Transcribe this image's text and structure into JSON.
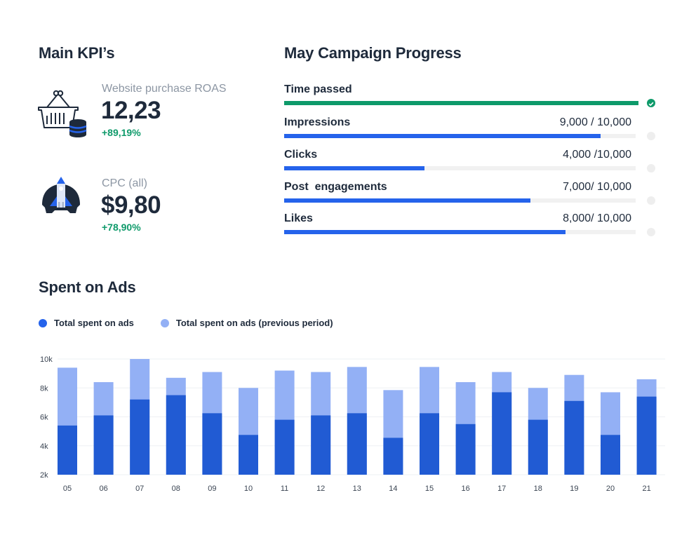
{
  "kpis": {
    "title": "Main KPI’s",
    "items": [
      {
        "label": "Website purchase ROAS",
        "value": "12,23",
        "delta": "+89,19%",
        "icon": "shopping-basket-database-icon"
      },
      {
        "label": "CPC (all)",
        "value": "$9,80",
        "delta": "+78,90%",
        "icon": "rocket-launch-icon"
      }
    ]
  },
  "progress": {
    "title": "May Campaign Progress",
    "items": [
      {
        "label": "Time passed",
        "value_text": "",
        "fraction": 1.0,
        "color": "#0e9a6a",
        "complete": true
      },
      {
        "label": "Impressions",
        "value_text": "9,000 / 10,000",
        "fraction": 0.9,
        "color": "#2563eb",
        "complete": false
      },
      {
        "label": "Clicks",
        "value_text": "4,000 /10,000",
        "fraction": 0.4,
        "color": "#2563eb",
        "complete": false
      },
      {
        "label": "Post  engagements",
        "value_text": "7,000/ 10,000",
        "fraction": 0.7,
        "color": "#2563eb",
        "complete": false
      },
      {
        "label": "Likes",
        "value_text": "8,000/ 10,000",
        "fraction": 0.8,
        "color": "#2563eb",
        "complete": false
      }
    ]
  },
  "ads": {
    "title": "Spent on Ads"
  },
  "chart_data": {
    "type": "bar",
    "title": "Spent on Ads",
    "xlabel": "",
    "ylabel": "",
    "categories": [
      "05",
      "06",
      "07",
      "08",
      "09",
      "10",
      "11",
      "12",
      "13",
      "14",
      "15",
      "16",
      "17",
      "18",
      "19",
      "20",
      "21"
    ],
    "series": [
      {
        "name": "Total spent on ads (previous period)",
        "color": "#93b0f5",
        "values": [
          9400,
          8400,
          10000,
          8700,
          9100,
          8000,
          9200,
          9100,
          9450,
          7850,
          9450,
          8400,
          9100,
          8000,
          8900,
          7700,
          8600
        ]
      },
      {
        "name": "Total spent on ads",
        "color": "#215bd3",
        "values": [
          5400,
          6100,
          7200,
          7500,
          6250,
          4750,
          5800,
          6100,
          6250,
          4550,
          6250,
          5500,
          7700,
          5800,
          7100,
          4750,
          7400
        ]
      }
    ],
    "legend": [
      "Total spent on ads",
      "Total spent on ads (previous period)"
    ],
    "legend_position": "top-left",
    "yticks": [
      "2k",
      "4k",
      "6k",
      "8k",
      "10k"
    ],
    "ytick_values": [
      2000,
      4000,
      6000,
      8000,
      10000
    ],
    "ylim": [
      2000,
      10000
    ],
    "grid": true,
    "overlay": true
  }
}
